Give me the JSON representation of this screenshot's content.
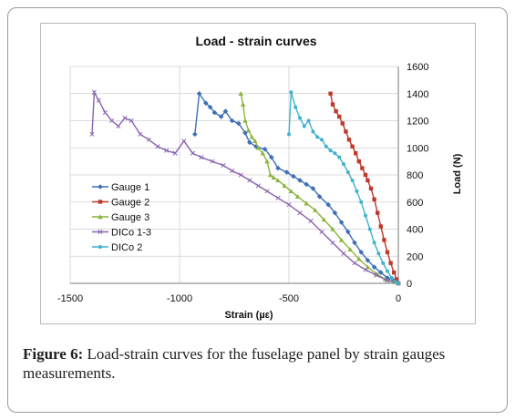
{
  "figure": {
    "caption_label": "Figure 6:",
    "caption_text": " Load-strain curves for the fuselage panel by strain gauges measurements."
  },
  "chart_data": {
    "type": "line",
    "title": "Load - strain curves",
    "xlabel": "Strain (µε)",
    "ylabel": "Load (N)",
    "xlim": [
      -1500,
      0
    ],
    "ylim": [
      0,
      1600
    ],
    "xticks": [
      "-1500",
      "-1000",
      "-500",
      "0"
    ],
    "xtick_values": [
      -1500,
      -1000,
      -500,
      0
    ],
    "yticks": [
      "0",
      "200",
      "400",
      "600",
      "800",
      "1000",
      "1200",
      "1400",
      "1600"
    ],
    "ytick_values": [
      0,
      200,
      400,
      600,
      800,
      1000,
      1200,
      1400,
      1600
    ],
    "grid": "both",
    "legend_position": "left-middle",
    "series": [
      {
        "name": "Gauge 1",
        "color": "#3d6fb6",
        "marker": "diamond",
        "points": [
          [
            -930,
            1100
          ],
          [
            -910,
            1400
          ],
          [
            -880,
            1330
          ],
          [
            -860,
            1300
          ],
          [
            -840,
            1260
          ],
          [
            -810,
            1230
          ],
          [
            -790,
            1270
          ],
          [
            -760,
            1200
          ],
          [
            -730,
            1180
          ],
          [
            -700,
            1110
          ],
          [
            -680,
            1040
          ],
          [
            -650,
            1010
          ],
          [
            -610,
            990
          ],
          [
            -580,
            930
          ],
          [
            -550,
            850
          ],
          [
            -510,
            820
          ],
          [
            -480,
            790
          ],
          [
            -450,
            760
          ],
          [
            -420,
            730
          ],
          [
            -390,
            700
          ],
          [
            -360,
            640
          ],
          [
            -320,
            580
          ],
          [
            -290,
            520
          ],
          [
            -260,
            450
          ],
          [
            -230,
            380
          ],
          [
            -200,
            300
          ],
          [
            -170,
            230
          ],
          [
            -140,
            170
          ],
          [
            -110,
            120
          ],
          [
            -80,
            80
          ],
          [
            -50,
            40
          ],
          [
            -20,
            20
          ],
          [
            0,
            0
          ]
        ]
      },
      {
        "name": "Gauge 2",
        "color": "#c0392b",
        "marker": "square",
        "points": [
          [
            -310,
            1400
          ],
          [
            -300,
            1320
          ],
          [
            -285,
            1270
          ],
          [
            -270,
            1230
          ],
          [
            -255,
            1180
          ],
          [
            -240,
            1120
          ],
          [
            -225,
            1060
          ],
          [
            -210,
            1010
          ],
          [
            -195,
            960
          ],
          [
            -180,
            900
          ],
          [
            -165,
            850
          ],
          [
            -150,
            800
          ],
          [
            -140,
            760
          ],
          [
            -125,
            700
          ],
          [
            -110,
            620
          ],
          [
            -95,
            520
          ],
          [
            -80,
            420
          ],
          [
            -65,
            320
          ],
          [
            -50,
            230
          ],
          [
            -35,
            150
          ],
          [
            -20,
            80
          ],
          [
            -8,
            30
          ],
          [
            0,
            0
          ]
        ]
      },
      {
        "name": "Gauge 3",
        "color": "#8ab43c",
        "marker": "triangle",
        "points": [
          [
            -720,
            1400
          ],
          [
            -710,
            1320
          ],
          [
            -700,
            1200
          ],
          [
            -685,
            1130
          ],
          [
            -670,
            1080
          ],
          [
            -655,
            1050
          ],
          [
            -640,
            1000
          ],
          [
            -620,
            960
          ],
          [
            -600,
            900
          ],
          [
            -585,
            800
          ],
          [
            -570,
            780
          ],
          [
            -550,
            760
          ],
          [
            -520,
            720
          ],
          [
            -490,
            680
          ],
          [
            -460,
            640
          ],
          [
            -420,
            590
          ],
          [
            -380,
            540
          ],
          [
            -340,
            470
          ],
          [
            -300,
            400
          ],
          [
            -260,
            320
          ],
          [
            -220,
            250
          ],
          [
            -180,
            180
          ],
          [
            -140,
            120
          ],
          [
            -100,
            70
          ],
          [
            -60,
            30
          ],
          [
            -20,
            10
          ],
          [
            0,
            0
          ]
        ]
      },
      {
        "name": "DICo 1-3",
        "color": "#8a64b0",
        "marker": "x",
        "points": [
          [
            -1400,
            1100
          ],
          [
            -1390,
            1410
          ],
          [
            -1370,
            1350
          ],
          [
            -1340,
            1260
          ],
          [
            -1310,
            1200
          ],
          [
            -1280,
            1160
          ],
          [
            -1250,
            1220
          ],
          [
            -1220,
            1200
          ],
          [
            -1180,
            1100
          ],
          [
            -1140,
            1060
          ],
          [
            -1100,
            1010
          ],
          [
            -1060,
            980
          ],
          [
            -1020,
            960
          ],
          [
            -980,
            1050
          ],
          [
            -940,
            960
          ],
          [
            -900,
            930
          ],
          [
            -850,
            900
          ],
          [
            -800,
            870
          ],
          [
            -760,
            830
          ],
          [
            -720,
            800
          ],
          [
            -680,
            760
          ],
          [
            -640,
            720
          ],
          [
            -600,
            680
          ],
          [
            -550,
            630
          ],
          [
            -500,
            580
          ],
          [
            -450,
            520
          ],
          [
            -400,
            460
          ],
          [
            -350,
            380
          ],
          [
            -300,
            300
          ],
          [
            -250,
            220
          ],
          [
            -200,
            150
          ],
          [
            -150,
            100
          ],
          [
            -100,
            60
          ],
          [
            -50,
            20
          ],
          [
            0,
            0
          ]
        ]
      },
      {
        "name": "DICo 2",
        "color": "#3fb2cf",
        "marker": "circle",
        "points": [
          [
            -500,
            1100
          ],
          [
            -490,
            1410
          ],
          [
            -470,
            1300
          ],
          [
            -450,
            1220
          ],
          [
            -430,
            1160
          ],
          [
            -410,
            1200
          ],
          [
            -390,
            1120
          ],
          [
            -370,
            1080
          ],
          [
            -350,
            1060
          ],
          [
            -330,
            1010
          ],
          [
            -310,
            980
          ],
          [
            -290,
            960
          ],
          [
            -270,
            930
          ],
          [
            -250,
            880
          ],
          [
            -230,
            820
          ],
          [
            -210,
            760
          ],
          [
            -190,
            680
          ],
          [
            -170,
            600
          ],
          [
            -150,
            500
          ],
          [
            -130,
            400
          ],
          [
            -110,
            300
          ],
          [
            -90,
            220
          ],
          [
            -70,
            150
          ],
          [
            -50,
            90
          ],
          [
            -30,
            40
          ],
          [
            -10,
            10
          ],
          [
            0,
            0
          ]
        ]
      }
    ]
  }
}
